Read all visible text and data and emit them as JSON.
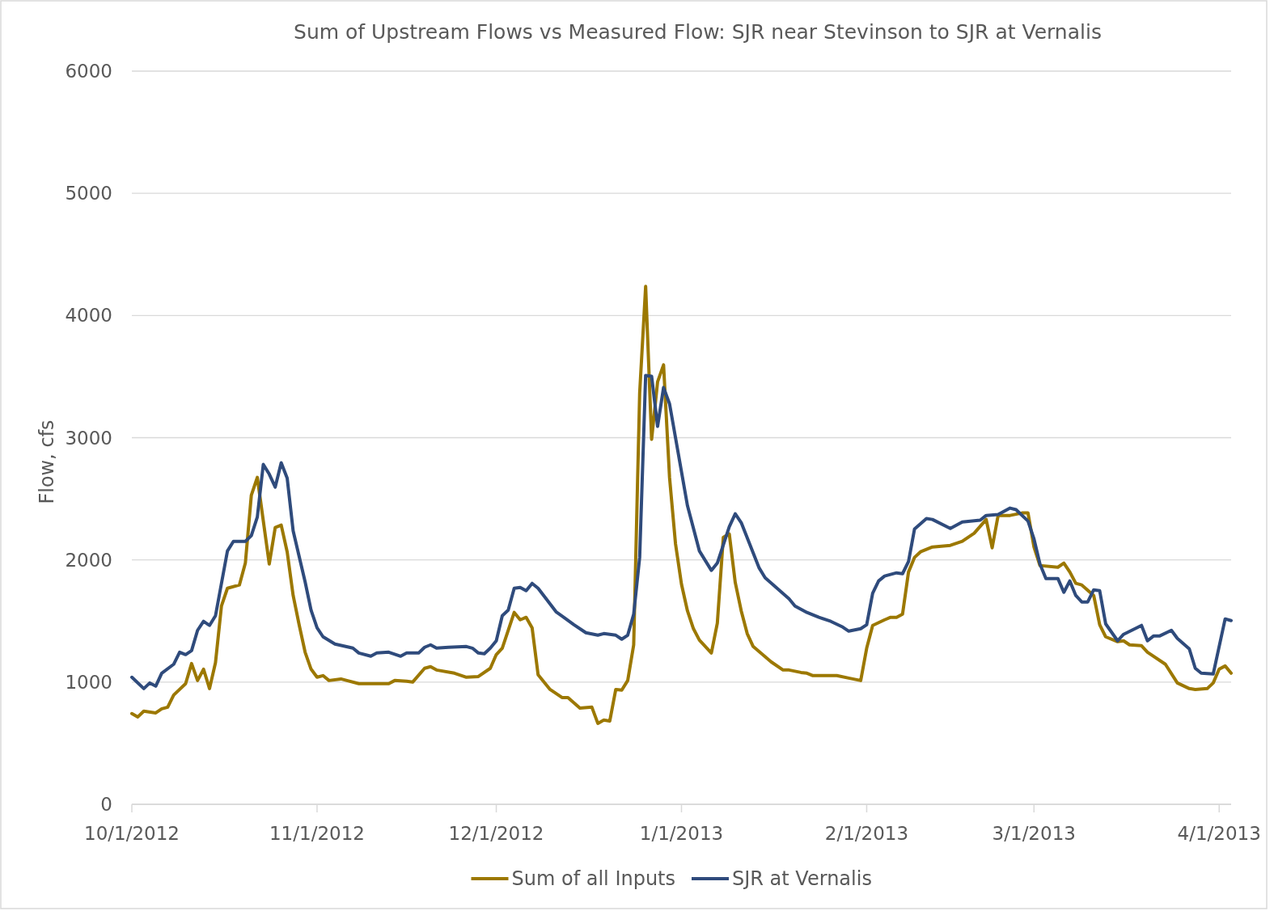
{
  "chart_data": {
    "type": "line",
    "title": "Sum of Upstream Flows vs Measured Flow: SJR near Stevinson to SJR at  Vernalis",
    "ylabel": "Flow, cfs",
    "xlim": [
      "2012-10-01",
      "2013-04-03"
    ],
    "ylim": [
      0,
      6000
    ],
    "yticks": [
      0,
      1000,
      2000,
      3000,
      4000,
      5000,
      6000
    ],
    "xticks": [
      {
        "value": "2012-10-01",
        "label": "10/1/2012"
      },
      {
        "value": "2012-11-01",
        "label": "11/1/2012"
      },
      {
        "value": "2012-12-01",
        "label": "12/1/2012"
      },
      {
        "value": "2013-01-01",
        "label": "1/1/2013"
      },
      {
        "value": "2013-02-01",
        "label": "2/1/2013"
      },
      {
        "value": "2013-03-01",
        "label": "3/1/2013"
      },
      {
        "value": "2013-04-01",
        "label": "4/1/2013"
      }
    ],
    "grid": "y",
    "legend": "bottom",
    "line_style": "solid",
    "marker": "none",
    "series": [
      {
        "name": "Sum of all Inputs",
        "color": "#9c7800",
        "x": [
          "2012-10-01",
          "2012-10-02",
          "2012-10-03",
          "2012-10-05",
          "2012-10-06",
          "2012-10-07",
          "2012-10-08",
          "2012-10-10",
          "2012-10-11",
          "2012-10-12",
          "2012-10-13",
          "2012-10-14",
          "2012-10-15",
          "2012-10-16",
          "2012-10-17",
          "2012-10-19",
          "2012-10-20",
          "2012-10-21",
          "2012-10-22",
          "2012-10-24",
          "2012-10-25",
          "2012-10-26",
          "2012-10-27",
          "2012-10-28",
          "2012-10-29",
          "2012-10-30",
          "2012-10-31",
          "2012-11-01",
          "2012-11-02",
          "2012-11-03",
          "2012-11-05",
          "2012-11-06",
          "2012-11-08",
          "2012-11-13",
          "2012-11-14",
          "2012-11-16",
          "2012-11-17",
          "2012-11-19",
          "2012-11-20",
          "2012-11-21",
          "2012-11-24",
          "2012-11-26",
          "2012-11-28",
          "2012-11-30",
          "2012-12-01",
          "2012-12-02",
          "2012-12-04",
          "2012-12-05",
          "2012-12-06",
          "2012-12-07",
          "2012-12-08",
          "2012-12-10",
          "2012-12-12",
          "2012-12-13",
          "2012-12-15",
          "2012-12-17",
          "2012-12-18",
          "2012-12-19",
          "2012-12-20",
          "2012-12-21",
          "2012-12-22",
          "2012-12-23",
          "2012-12-24",
          "2012-12-25",
          "2012-12-26",
          "2012-12-27",
          "2012-12-28",
          "2012-12-29",
          "2012-12-30",
          "2012-12-31",
          "2013-01-01",
          "2013-01-02",
          "2013-01-03",
          "2013-01-04",
          "2013-01-06",
          "2013-01-07",
          "2013-01-08",
          "2013-01-09",
          "2013-01-10",
          "2013-01-11",
          "2013-01-12",
          "2013-01-13",
          "2013-01-16",
          "2013-01-18",
          "2013-01-19",
          "2013-01-21",
          "2013-01-22",
          "2013-01-23",
          "2013-01-27",
          "2013-01-29",
          "2013-01-31",
          "2013-02-01",
          "2013-02-02",
          "2013-02-04",
          "2013-02-05",
          "2013-02-06",
          "2013-02-07",
          "2013-02-08",
          "2013-02-09",
          "2013-02-10",
          "2013-02-12",
          "2013-02-15",
          "2013-02-17",
          "2013-02-19",
          "2013-02-21",
          "2013-02-22",
          "2013-02-23",
          "2013-02-25",
          "2013-02-27",
          "2013-02-28",
          "2013-03-01",
          "2013-03-02",
          "2013-03-05",
          "2013-03-06",
          "2013-03-07",
          "2013-03-08",
          "2013-03-09",
          "2013-03-11",
          "2013-03-12",
          "2013-03-13",
          "2013-03-15",
          "2013-03-16",
          "2013-03-17",
          "2013-03-19",
          "2013-03-20",
          "2013-03-23",
          "2013-03-25",
          "2013-03-27",
          "2013-03-28",
          "2013-03-30",
          "2013-03-31",
          "2013-04-01",
          "2013-04-02",
          "2013-04-03"
        ],
        "values": [
          742,
          715,
          762,
          748,
          781,
          795,
          894,
          987,
          1152,
          1013,
          1106,
          947,
          1159,
          1623,
          1768,
          1795,
          1974,
          2530,
          2675,
          1967,
          2265,
          2285,
          2066,
          1709,
          1470,
          1245,
          1106,
          1040,
          1053,
          1013,
          1026,
          1013,
          987,
          987,
          1013,
          1007,
          1000,
          1113,
          1126,
          1099,
          1073,
          1040,
          1046,
          1113,
          1225,
          1278,
          1570,
          1510,
          1530,
          1444,
          1060,
          940,
          874,
          874,
          788,
          795,
          662,
          689,
          682,
          940,
          934,
          1013,
          1305,
          3364,
          4238,
          2987,
          3457,
          3596,
          2675,
          2132,
          1801,
          1583,
          1437,
          1344,
          1238,
          1483,
          2185,
          2212,
          1815,
          1583,
          1397,
          1291,
          1166,
          1099,
          1099,
          1079,
          1073,
          1053,
          1053,
          1033,
          1013,
          1278,
          1464,
          1510,
          1530,
          1530,
          1556,
          1901,
          2020,
          2066,
          2106,
          2119,
          2152,
          2219,
          2331,
          2099,
          2364,
          2364,
          2384,
          2384,
          2106,
          1954,
          1940,
          1974,
          1901,
          1808,
          1795,
          1709,
          1470,
          1371,
          1331,
          1338,
          1305,
          1298,
          1245,
          1146,
          993,
          947,
          940,
          947,
          993,
          1106,
          1132,
          1073
        ]
      },
      {
        "name": "SJR at Vernalis",
        "color": "#2f4b7c",
        "x": [
          "2012-10-01",
          "2012-10-03",
          "2012-10-04",
          "2012-10-05",
          "2012-10-06",
          "2012-10-08",
          "2012-10-09",
          "2012-10-10",
          "2012-10-11",
          "2012-10-12",
          "2012-10-13",
          "2012-10-14",
          "2012-10-15",
          "2012-10-17",
          "2012-10-18",
          "2012-10-20",
          "2012-10-21",
          "2012-10-22",
          "2012-10-23",
          "2012-10-24",
          "2012-10-25",
          "2012-10-26",
          "2012-10-27",
          "2012-10-28",
          "2012-10-30",
          "2012-10-31",
          "2012-11-01",
          "2012-11-02",
          "2012-11-04",
          "2012-11-07",
          "2012-11-08",
          "2012-11-10",
          "2012-11-11",
          "2012-11-13",
          "2012-11-15",
          "2012-11-16",
          "2012-11-18",
          "2012-11-19",
          "2012-11-20",
          "2012-11-21",
          "2012-11-23",
          "2012-11-26",
          "2012-11-27",
          "2012-11-28",
          "2012-11-29",
          "2012-11-30",
          "2012-12-01",
          "2012-12-02",
          "2012-12-03",
          "2012-12-04",
          "2012-12-05",
          "2012-12-06",
          "2012-12-07",
          "2012-12-08",
          "2012-12-11",
          "2012-12-14",
          "2012-12-16",
          "2012-12-18",
          "2012-12-19",
          "2012-12-21",
          "2012-12-22",
          "2012-12-23",
          "2012-12-24",
          "2012-12-25",
          "2012-12-26",
          "2012-12-27",
          "2012-12-28",
          "2012-12-29",
          "2012-12-30",
          "2013-01-02",
          "2013-01-04",
          "2013-01-06",
          "2013-01-07",
          "2013-01-09",
          "2013-01-10",
          "2013-01-11",
          "2013-01-14",
          "2013-01-15",
          "2013-01-19",
          "2013-01-20",
          "2013-01-22",
          "2013-01-24",
          "2013-01-26",
          "2013-01-28",
          "2013-01-29",
          "2013-01-31",
          "2013-02-01",
          "2013-02-02",
          "2013-02-03",
          "2013-02-04",
          "2013-02-06",
          "2013-02-07",
          "2013-02-08",
          "2013-02-09",
          "2013-02-11",
          "2013-02-12",
          "2013-02-15",
          "2013-02-17",
          "2013-02-20",
          "2013-02-21",
          "2013-02-23",
          "2013-02-25",
          "2013-02-26",
          "2013-02-28",
          "2013-03-01",
          "2013-03-02",
          "2013-03-03",
          "2013-03-05",
          "2013-03-06",
          "2013-03-07",
          "2013-03-08",
          "2013-03-09",
          "2013-03-10",
          "2013-03-11",
          "2013-03-12",
          "2013-03-13",
          "2013-03-15",
          "2013-03-16",
          "2013-03-19",
          "2013-03-20",
          "2013-03-21",
          "2013-03-22",
          "2013-03-24",
          "2013-03-25",
          "2013-03-27",
          "2013-03-28",
          "2013-03-29",
          "2013-03-31",
          "2013-04-02",
          "2013-04-03"
        ],
        "values": [
          1040,
          947,
          993,
          967,
          1073,
          1146,
          1245,
          1225,
          1258,
          1424,
          1497,
          1464,
          1543,
          2073,
          2152,
          2152,
          2199,
          2351,
          2781,
          2702,
          2596,
          2795,
          2669,
          2238,
          1821,
          1589,
          1444,
          1371,
          1311,
          1278,
          1238,
          1212,
          1238,
          1245,
          1212,
          1238,
          1238,
          1285,
          1305,
          1278,
          1285,
          1291,
          1278,
          1238,
          1232,
          1278,
          1338,
          1543,
          1589,
          1768,
          1775,
          1748,
          1808,
          1768,
          1576,
          1470,
          1404,
          1384,
          1397,
          1384,
          1351,
          1384,
          1556,
          2020,
          3510,
          3503,
          3093,
          3411,
          3278,
          2444,
          2073,
          1914,
          1974,
          2272,
          2377,
          2305,
          1934,
          1854,
          1682,
          1623,
          1570,
          1530,
          1497,
          1450,
          1417,
          1437,
          1470,
          1728,
          1828,
          1868,
          1894,
          1887,
          1987,
          2252,
          2338,
          2331,
          2258,
          2311,
          2325,
          2364,
          2371,
          2424,
          2411,
          2318,
          2172,
          1967,
          1848,
          1848,
          1735,
          1828,
          1709,
          1656,
          1656,
          1755,
          1748,
          1477,
          1338,
          1391,
          1464,
          1338,
          1377,
          1377,
          1424,
          1358,
          1272,
          1113,
          1073,
          1066,
          1517,
          1503
        ]
      }
    ]
  }
}
